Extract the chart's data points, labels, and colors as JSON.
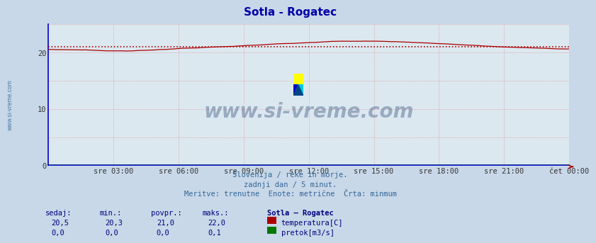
{
  "title": "Sotla - Rogatec",
  "title_color": "#0000aa",
  "bg_color": "#c8d8e8",
  "plot_bg_color": "#dce8f0",
  "x_tick_labels": [
    "sre 03:00",
    "sre 06:00",
    "sre 09:00",
    "sre 12:00",
    "sre 15:00",
    "sre 18:00",
    "sre 21:00",
    "čet 00:00"
  ],
  "x_tick_positions_norm": [
    0.125,
    0.25,
    0.375,
    0.5,
    0.625,
    0.75,
    0.875,
    1.0
  ],
  "ylim": [
    0,
    25
  ],
  "yticks": [
    0,
    10,
    20
  ],
  "temp_line_color": "#aa0000",
  "temp_avg": 21.0,
  "flow_line_color": "#007700",
  "watermark_text": "www.si-vreme.com",
  "watermark_color": "#1a3a6a",
  "watermark_alpha": 0.35,
  "footer_line1": "Slovenija / reke in morje.",
  "footer_line2": "zadnji dan / 5 minut.",
  "footer_line3": "Meritve: trenutne  Enote: metrične  Črta: minmum",
  "footer_color": "#336699",
  "table_headers": [
    "sedaj:",
    "min.:",
    "povpr.:",
    "maks.:",
    "Sotla – Rogatec"
  ],
  "table_row1_vals": [
    "20,5",
    "20,3",
    "21,0",
    "22,0"
  ],
  "table_row2_vals": [
    "0,0",
    "0,0",
    "0,0",
    "0,1"
  ],
  "table_row1_label": "temperatura[C]",
  "table_row2_label": "pretok[m3/s]",
  "table_color": "#000080",
  "left_label_color": "#336699",
  "spine_color": "#0000cc",
  "grid_vcolor": "#e08080",
  "grid_hcolor": "#e08080"
}
